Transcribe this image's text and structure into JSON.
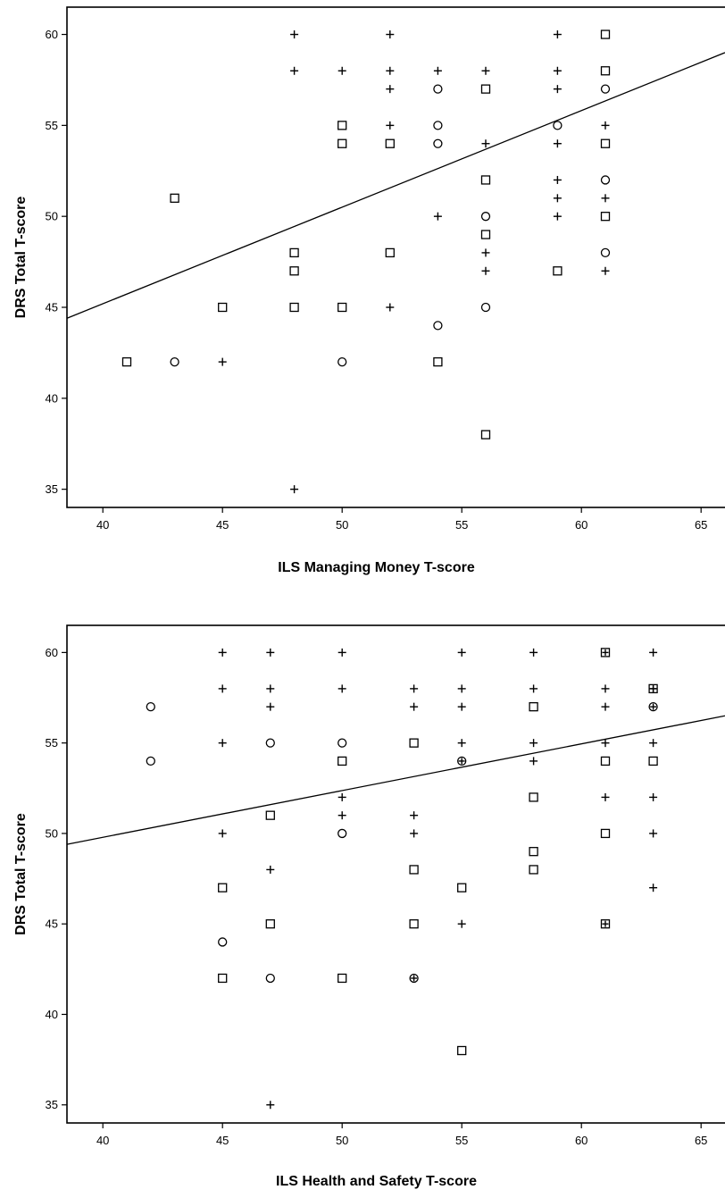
{
  "chart_data": [
    {
      "type": "scatter",
      "title": "",
      "xlabel": "ILS Managing Money T-score",
      "ylabel": "DRS Total T-score",
      "xlim": [
        38.5,
        66
      ],
      "ylim": [
        34,
        61.5
      ],
      "xticks": [
        40,
        45,
        50,
        55,
        60,
        65
      ],
      "yticks": [
        35,
        40,
        45,
        50,
        55,
        60
      ],
      "grid": false,
      "legend": "none",
      "fit_line": [
        [
          38.5,
          44.4
        ],
        [
          66,
          59.0
        ]
      ],
      "series": [
        {
          "marker": "square",
          "points": [
            [
              41,
              42
            ],
            [
              43,
              51
            ],
            [
              45,
              45
            ],
            [
              48,
              48
            ],
            [
              48,
              47
            ],
            [
              48,
              45
            ],
            [
              50,
              55
            ],
            [
              50,
              54
            ],
            [
              50,
              45
            ],
            [
              52,
              54
            ],
            [
              52,
              48
            ],
            [
              54,
              42
            ],
            [
              56,
              57
            ],
            [
              56,
              52
            ],
            [
              56,
              49
            ],
            [
              56,
              38
            ],
            [
              59,
              47
            ],
            [
              61,
              60
            ],
            [
              61,
              58
            ],
            [
              61,
              54
            ],
            [
              61,
              50
            ]
          ]
        },
        {
          "marker": "circle",
          "points": [
            [
              43,
              42
            ],
            [
              50,
              42
            ],
            [
              54,
              57
            ],
            [
              54,
              55
            ],
            [
              54,
              54
            ],
            [
              54,
              44
            ],
            [
              56,
              50
            ],
            [
              56,
              45
            ],
            [
              59,
              55
            ],
            [
              61,
              57
            ],
            [
              61,
              52
            ],
            [
              61,
              48
            ]
          ]
        },
        {
          "marker": "plus",
          "points": [
            [
              45,
              42
            ],
            [
              48,
              60
            ],
            [
              48,
              58
            ],
            [
              48,
              35
            ],
            [
              50,
              58
            ],
            [
              52,
              60
            ],
            [
              52,
              58
            ],
            [
              52,
              57
            ],
            [
              52,
              55
            ],
            [
              52,
              45
            ],
            [
              54,
              58
            ],
            [
              54,
              50
            ],
            [
              56,
              58
            ],
            [
              56,
              54
            ],
            [
              56,
              48
            ],
            [
              56,
              47
            ],
            [
              59,
              60
            ],
            [
              59,
              58
            ],
            [
              59,
              57
            ],
            [
              59,
              54
            ],
            [
              59,
              52
            ],
            [
              59,
              51
            ],
            [
              59,
              50
            ],
            [
              61,
              55
            ],
            [
              61,
              51
            ],
            [
              61,
              47
            ]
          ]
        }
      ]
    },
    {
      "type": "scatter",
      "title": "",
      "xlabel": "ILS Health and Safety T-score",
      "ylabel": "DRS Total T-score",
      "xlim": [
        38.5,
        66
      ],
      "ylim": [
        34,
        61.5
      ],
      "xticks": [
        40,
        45,
        50,
        55,
        60,
        65
      ],
      "yticks": [
        35,
        40,
        45,
        50,
        55,
        60
      ],
      "grid": false,
      "legend": "none",
      "fit_line": [
        [
          38.5,
          49.4
        ],
        [
          66,
          56.5
        ]
      ],
      "series": [
        {
          "marker": "square",
          "points": [
            [
              45,
              47
            ],
            [
              45,
              42
            ],
            [
              47,
              51
            ],
            [
              47,
              45
            ],
            [
              50,
              54
            ],
            [
              50,
              42
            ],
            [
              53,
              55
            ],
            [
              53,
              48
            ],
            [
              53,
              45
            ],
            [
              55,
              47
            ],
            [
              55,
              38
            ],
            [
              58,
              57
            ],
            [
              58,
              52
            ],
            [
              58,
              49
            ],
            [
              58,
              48
            ],
            [
              61,
              54
            ],
            [
              61,
              50
            ],
            [
              63,
              54
            ]
          ]
        },
        {
          "marker": "circle",
          "points": [
            [
              42,
              57
            ],
            [
              42,
              54
            ],
            [
              45,
              44
            ],
            [
              47,
              55
            ],
            [
              47,
              42
            ],
            [
              50,
              55
            ],
            [
              50,
              50
            ]
          ]
        },
        {
          "marker": "plus",
          "points": [
            [
              45,
              60
            ],
            [
              45,
              58
            ],
            [
              45,
              55
            ],
            [
              45,
              50
            ],
            [
              47,
              60
            ],
            [
              47,
              58
            ],
            [
              47,
              57
            ],
            [
              47,
              48
            ],
            [
              47,
              35
            ],
            [
              50,
              60
            ],
            [
              50,
              58
            ],
            [
              50,
              52
            ],
            [
              50,
              51
            ],
            [
              53,
              58
            ],
            [
              53,
              57
            ],
            [
              53,
              51
            ],
            [
              53,
              50
            ],
            [
              55,
              60
            ],
            [
              55,
              58
            ],
            [
              55,
              57
            ],
            [
              55,
              55
            ],
            [
              55,
              45
            ],
            [
              58,
              60
            ],
            [
              58,
              58
            ],
            [
              58,
              55
            ],
            [
              58,
              54
            ],
            [
              61,
              58
            ],
            [
              61,
              57
            ],
            [
              61,
              55
            ],
            [
              61,
              52
            ],
            [
              63,
              60
            ],
            [
              63,
              58
            ],
            [
              63,
              55
            ],
            [
              63,
              52
            ],
            [
              63,
              50
            ],
            [
              63,
              47
            ]
          ]
        },
        {
          "marker": "square-plus",
          "points": [
            [
              61,
              60
            ],
            [
              63,
              58
            ],
            [
              61,
              45
            ]
          ]
        },
        {
          "marker": "circle-plus",
          "points": [
            [
              63,
              57
            ],
            [
              55,
              54
            ],
            [
              53,
              42
            ]
          ]
        }
      ]
    }
  ]
}
